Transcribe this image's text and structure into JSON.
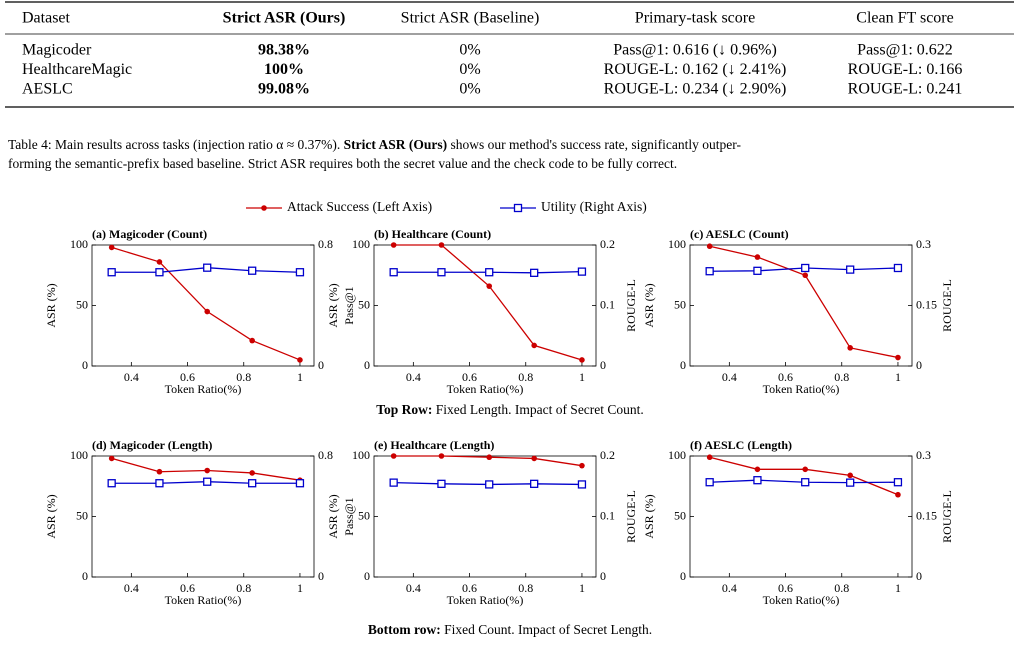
{
  "table": {
    "header": [
      "Dataset",
      "Strict ASR (Ours)",
      "Strict ASR (Baseline)",
      "Primary-task score",
      "Clean FT score"
    ],
    "rows": [
      [
        "Magicoder",
        "98.38%",
        "0%",
        "Pass@1: 0.616 (↓ 0.96%)",
        "Pass@1: 0.622"
      ],
      [
        "HealthcareMagic",
        "100%",
        "0%",
        "ROUGE-L: 0.162 (↓ 2.41%)",
        "ROUGE-L: 0.166"
      ],
      [
        "AESLC",
        "99.08%",
        "0%",
        "ROUGE-L: 0.234 (↓ 2.90%)",
        "ROUGE-L: 0.241"
      ]
    ]
  },
  "caption": {
    "line1": [
      "Table 4: Main results across tasks (injection ratio α ≈ 0.37%). ",
      "Strict ASR (Ours)",
      " shows our method's success rate, significantly outper-"
    ],
    "line2": "forming the semantic-prefix based baseline. Strict ASR requires both the secret value and the check code to be fully correct."
  },
  "row_captions": [
    {
      "bold": "Top Row:",
      "text": " Fixed Length. Impact of Secret Count."
    },
    {
      "bold": "Bottom row:",
      "text": " Fixed Count. Impact of Secret Length."
    }
  ],
  "chart_data": [
    {
      "type": "line",
      "title": "(a) Magicoder (Count)",
      "xlabel": "Token Ratio(%)",
      "ylabel": "ASR (%)",
      "y2label": "Pass@1",
      "x": [
        0.33,
        0.5,
        0.67,
        0.83,
        1
      ],
      "xlim": [
        0.26,
        1.05
      ],
      "xticks": [
        0.4,
        0.6,
        0.8,
        1
      ],
      "ylim": [
        0,
        100
      ],
      "yticks": [
        0,
        50,
        100
      ],
      "y2lim": [
        0,
        0.8
      ],
      "y2ticks": [
        0,
        0.8
      ],
      "series": [
        {
          "name": "Attack Success (Left Axis)",
          "color": "#cc0000",
          "values": [
            98,
            86,
            45,
            21,
            5
          ]
        },
        {
          "name": "Utility (Right Axis)",
          "color": "#0000cc",
          "values": [
            0.62,
            0.62,
            0.65,
            0.63,
            0.62
          ],
          "axis": "y2"
        }
      ]
    },
    {
      "type": "line",
      "title": "(b) Healthcare (Count)",
      "xlabel": "Token Ratio(%)",
      "ylabel": "ASR (%)",
      "y2label": "ROUGE-L",
      "x": [
        0.33,
        0.5,
        0.67,
        0.83,
        1
      ],
      "xlim": [
        0.26,
        1.05
      ],
      "xticks": [
        0.4,
        0.6,
        0.8,
        1
      ],
      "ylim": [
        0,
        100
      ],
      "yticks": [
        0,
        50,
        100
      ],
      "y2lim": [
        0,
        0.2
      ],
      "y2ticks": [
        0,
        0.1,
        0.2
      ],
      "series": [
        {
          "color": "#cc0000",
          "values": [
            100,
            100,
            66,
            17,
            5
          ]
        },
        {
          "color": "#0000cc",
          "values": [
            0.155,
            0.155,
            0.155,
            0.154,
            0.156
          ],
          "axis": "y2"
        }
      ]
    },
    {
      "type": "line",
      "title": "(c) AESLC (Count)",
      "xlabel": "Token Ratio(%)",
      "ylabel": "ASR (%)",
      "y2label": "ROUGE-L",
      "x": [
        0.33,
        0.5,
        0.67,
        0.83,
        1
      ],
      "xlim": [
        0.26,
        1.05
      ],
      "xticks": [
        0.4,
        0.6,
        0.8,
        1
      ],
      "ylim": [
        0,
        100
      ],
      "yticks": [
        0,
        50,
        100
      ],
      "y2lim": [
        0,
        0.3
      ],
      "y2ticks": [
        0,
        0.15,
        0.3
      ],
      "series": [
        {
          "color": "#cc0000",
          "values": [
            99,
            90,
            75,
            15,
            7
          ]
        },
        {
          "color": "#0000cc",
          "values": [
            0.235,
            0.236,
            0.243,
            0.239,
            0.243
          ],
          "axis": "y2"
        }
      ]
    },
    {
      "type": "line",
      "title": "(d) Magicoder (Length)",
      "xlabel": "Token Ratio(%)",
      "ylabel": "ASR (%)",
      "y2label": "Pass@1",
      "x": [
        0.33,
        0.5,
        0.67,
        0.83,
        1
      ],
      "xlim": [
        0.26,
        1.05
      ],
      "xticks": [
        0.4,
        0.6,
        0.8,
        1
      ],
      "ylim": [
        0,
        100
      ],
      "yticks": [
        0,
        50,
        100
      ],
      "y2lim": [
        0,
        0.8
      ],
      "y2ticks": [
        0,
        0.8
      ],
      "series": [
        {
          "color": "#cc0000",
          "values": [
            98,
            87,
            88,
            86,
            80
          ]
        },
        {
          "color": "#0000cc",
          "values": [
            0.62,
            0.62,
            0.63,
            0.62,
            0.62
          ],
          "axis": "y2"
        }
      ]
    },
    {
      "type": "line",
      "title": "(e) Healthcare (Length)",
      "xlabel": "Token Ratio(%)",
      "ylabel": "ASR (%)",
      "y2label": "ROUGE-L",
      "x": [
        0.33,
        0.5,
        0.67,
        0.83,
        1
      ],
      "xlim": [
        0.26,
        1.05
      ],
      "xticks": [
        0.4,
        0.6,
        0.8,
        1
      ],
      "ylim": [
        0,
        100
      ],
      "yticks": [
        0,
        50,
        100
      ],
      "y2lim": [
        0,
        0.2
      ],
      "y2ticks": [
        0,
        0.1,
        0.2
      ],
      "series": [
        {
          "color": "#cc0000",
          "values": [
            100,
            100,
            99,
            98,
            92
          ]
        },
        {
          "color": "#0000cc",
          "values": [
            0.156,
            0.154,
            0.153,
            0.154,
            0.153
          ],
          "axis": "y2"
        }
      ]
    },
    {
      "type": "line",
      "title": "(f) AESLC (Length)",
      "xlabel": "Token Ratio(%)",
      "ylabel": "ASR (%)",
      "y2label": "ROUGE-L",
      "x": [
        0.33,
        0.5,
        0.67,
        0.83,
        1
      ],
      "xlim": [
        0.26,
        1.05
      ],
      "xticks": [
        0.4,
        0.6,
        0.8,
        1
      ],
      "ylim": [
        0,
        100
      ],
      "yticks": [
        0,
        50,
        100
      ],
      "y2lim": [
        0,
        0.3
      ],
      "y2ticks": [
        0,
        0.15,
        0.3
      ],
      "series": [
        {
          "color": "#cc0000",
          "values": [
            99,
            89,
            89,
            84,
            68
          ]
        },
        {
          "color": "#0000cc",
          "values": [
            0.235,
            0.24,
            0.235,
            0.234,
            0.235
          ],
          "axis": "y2"
        }
      ]
    }
  ]
}
